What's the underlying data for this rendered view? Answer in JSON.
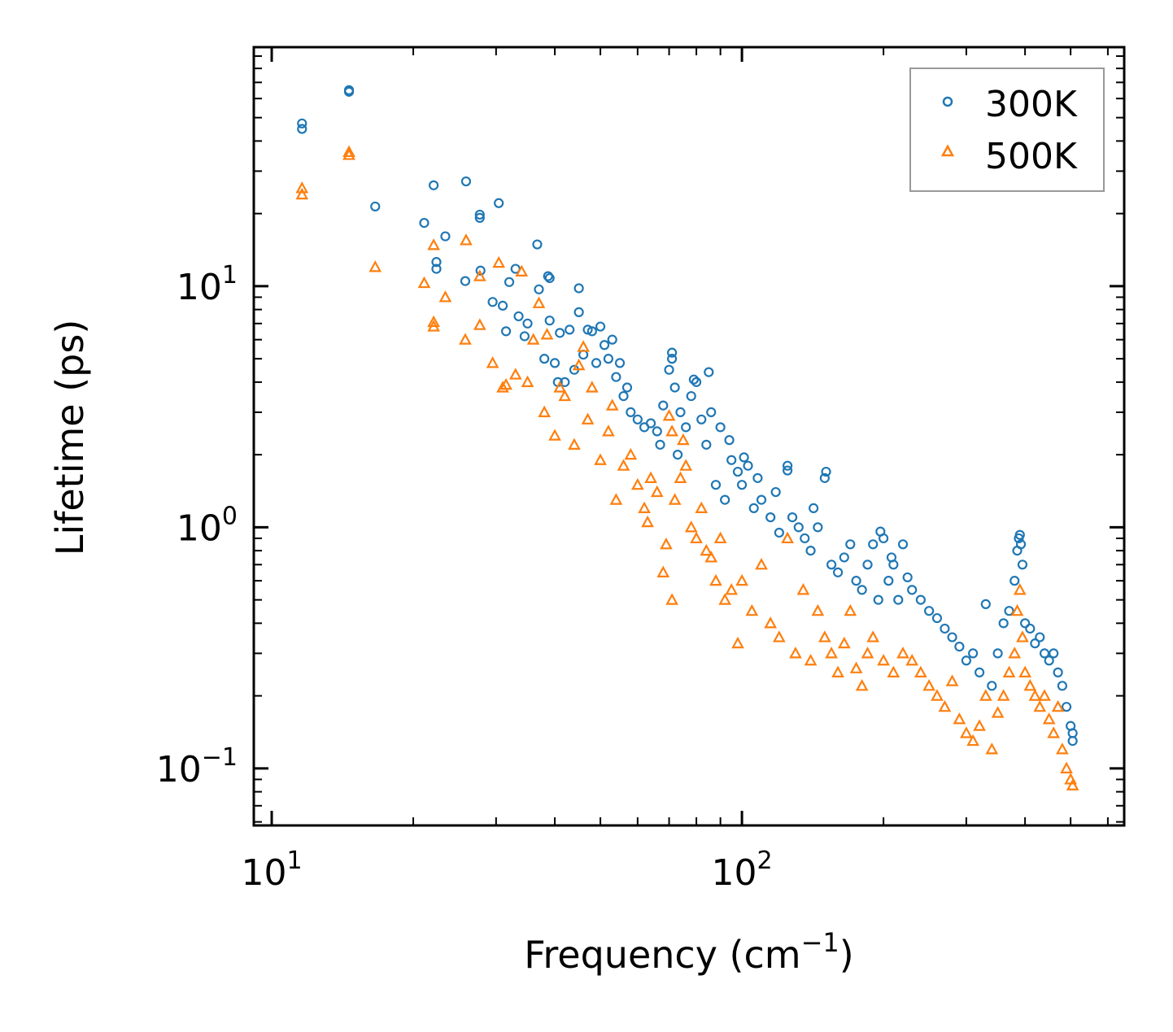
{
  "chart_data": {
    "type": "scatter",
    "title": "",
    "xlabel": "Frequency (cm",
    "xlabel_sup": "−1",
    "xlabel_end": ")",
    "ylabel": "Lifetime (ps)",
    "xscale": "log",
    "yscale": "log",
    "xlim": [
      9.16,
      650
    ],
    "ylim": [
      0.058,
      98
    ],
    "x_ticks": [
      {
        "value": 10,
        "base": "10",
        "exp": "1"
      },
      {
        "value": 100,
        "base": "10",
        "exp": "2"
      }
    ],
    "y_ticks": [
      {
        "value": 0.1,
        "base": "10",
        "exp": "−1"
      },
      {
        "value": 1,
        "base": "10",
        "exp": "0"
      },
      {
        "value": 10,
        "base": "10",
        "exp": "1"
      }
    ],
    "legend_position": "top-right",
    "grid": false,
    "series": [
      {
        "name": "300K",
        "marker": "circle",
        "color": "#1f77b4",
        "points": [
          [
            11.6,
            47.3
          ],
          [
            11.6,
            44.9
          ],
          [
            14.6,
            65
          ],
          [
            14.6,
            64
          ],
          [
            16.6,
            21.4
          ],
          [
            21.1,
            18.3
          ],
          [
            22.1,
            26.2
          ],
          [
            22.4,
            12.6
          ],
          [
            22.4,
            11.8
          ],
          [
            23.4,
            16.1
          ],
          [
            25.9,
            27.2
          ],
          [
            25.8,
            10.5
          ],
          [
            27.7,
            19.8
          ],
          [
            27.7,
            19.2
          ],
          [
            27.8,
            11.6
          ],
          [
            30.4,
            22.1
          ],
          [
            29.5,
            8.6
          ],
          [
            31,
            8.3
          ],
          [
            31.5,
            6.5
          ],
          [
            32,
            10.4
          ],
          [
            33,
            11.8
          ],
          [
            33.5,
            7.5
          ],
          [
            34.5,
            6.2
          ],
          [
            35,
            7.0
          ],
          [
            36.7,
            14.9
          ],
          [
            37,
            9.7
          ],
          [
            38,
            5.0
          ],
          [
            38.7,
            11
          ],
          [
            39,
            10.8
          ],
          [
            39,
            7.2
          ],
          [
            40,
            4.8
          ],
          [
            40.6,
            4.0
          ],
          [
            41,
            6.4
          ],
          [
            42,
            4.0
          ],
          [
            43,
            6.6
          ],
          [
            44,
            4.5
          ],
          [
            45,
            9.8
          ],
          [
            45,
            7.8
          ],
          [
            46,
            5.2
          ],
          [
            47,
            6.6
          ],
          [
            48,
            6.5
          ],
          [
            49,
            4.8
          ],
          [
            50,
            6.8
          ],
          [
            51,
            5.7
          ],
          [
            52,
            5.0
          ],
          [
            53,
            6.0
          ],
          [
            54,
            4.2
          ],
          [
            55,
            4.8
          ],
          [
            56,
            3.5
          ],
          [
            57,
            3.8
          ],
          [
            58,
            3.0
          ],
          [
            60,
            2.8
          ],
          [
            62,
            2.6
          ],
          [
            64,
            2.7
          ],
          [
            66,
            2.5
          ],
          [
            67,
            2.2
          ],
          [
            68,
            3.2
          ],
          [
            70,
            4.5
          ],
          [
            71,
            5.3
          ],
          [
            71,
            5.0
          ],
          [
            72,
            3.8
          ],
          [
            73,
            2.0
          ],
          [
            74,
            3.0
          ],
          [
            76,
            2.6
          ],
          [
            78,
            3.5
          ],
          [
            79,
            4.1
          ],
          [
            80,
            4.0
          ],
          [
            82,
            2.8
          ],
          [
            84,
            2.2
          ],
          [
            85,
            4.4
          ],
          [
            86,
            3.0
          ],
          [
            88,
            1.5
          ],
          [
            90,
            2.6
          ],
          [
            92,
            1.3
          ],
          [
            94,
            2.3
          ],
          [
            95,
            1.9
          ],
          [
            98,
            1.7
          ],
          [
            100,
            1.5
          ],
          [
            101,
            1.95
          ],
          [
            103,
            1.8
          ],
          [
            106,
            1.2
          ],
          [
            108,
            1.6
          ],
          [
            110,
            1.3
          ],
          [
            115,
            1.1
          ],
          [
            118,
            1.4
          ],
          [
            120,
            0.95
          ],
          [
            125,
            1.8
          ],
          [
            125,
            1.72
          ],
          [
            128,
            1.1
          ],
          [
            132,
            1.0
          ],
          [
            136,
            0.9
          ],
          [
            140,
            0.8
          ],
          [
            142,
            1.2
          ],
          [
            145,
            1.0
          ],
          [
            150,
            1.6
          ],
          [
            151,
            1.7
          ],
          [
            155,
            0.7
          ],
          [
            160,
            0.65
          ],
          [
            165,
            0.75
          ],
          [
            170,
            0.85
          ],
          [
            175,
            0.6
          ],
          [
            180,
            0.55
          ],
          [
            185,
            0.7
          ],
          [
            190,
            0.85
          ],
          [
            195,
            0.5
          ],
          [
            197,
            0.96
          ],
          [
            200,
            0.9
          ],
          [
            205,
            0.6
          ],
          [
            208,
            0.75
          ],
          [
            210,
            0.7
          ],
          [
            215,
            0.5
          ],
          [
            220,
            0.85
          ],
          [
            225,
            0.62
          ],
          [
            230,
            0.55
          ],
          [
            240,
            0.5
          ],
          [
            250,
            0.45
          ],
          [
            260,
            0.42
          ],
          [
            270,
            0.38
          ],
          [
            280,
            0.35
          ],
          [
            290,
            0.32
          ],
          [
            300,
            0.28
          ],
          [
            310,
            0.3
          ],
          [
            320,
            0.25
          ],
          [
            330,
            0.48
          ],
          [
            340,
            0.22
          ],
          [
            350,
            0.3
          ],
          [
            360,
            0.4
          ],
          [
            370,
            0.45
          ],
          [
            380,
            0.6
          ],
          [
            385,
            0.8
          ],
          [
            388,
            0.9
          ],
          [
            390,
            0.93
          ],
          [
            392,
            0.85
          ],
          [
            395,
            0.7
          ],
          [
            400,
            0.4
          ],
          [
            410,
            0.38
          ],
          [
            420,
            0.33
          ],
          [
            430,
            0.35
          ],
          [
            440,
            0.3
          ],
          [
            450,
            0.28
          ],
          [
            460,
            0.3
          ],
          [
            470,
            0.25
          ],
          [
            480,
            0.22
          ],
          [
            490,
            0.18
          ],
          [
            500,
            0.15
          ],
          [
            505,
            0.13
          ],
          [
            505,
            0.14
          ]
        ]
      },
      {
        "name": "500K",
        "marker": "triangle",
        "color": "#ff7f0e",
        "points": [
          [
            11.6,
            25.5
          ],
          [
            11.6,
            24
          ],
          [
            14.6,
            36
          ],
          [
            14.6,
            35
          ],
          [
            16.6,
            12
          ],
          [
            21.1,
            10.3
          ],
          [
            22.1,
            14.8
          ],
          [
            22.1,
            7.1
          ],
          [
            22.1,
            6.8
          ],
          [
            23.4,
            9
          ],
          [
            25.8,
            6
          ],
          [
            25.9,
            15.5
          ],
          [
            27.7,
            11
          ],
          [
            27.7,
            6.9
          ],
          [
            29.5,
            4.8
          ],
          [
            30.4,
            12.5
          ],
          [
            31,
            3.8
          ],
          [
            31.5,
            3.9
          ],
          [
            33,
            4.3
          ],
          [
            34,
            11.5
          ],
          [
            35,
            4.0
          ],
          [
            36,
            6.0
          ],
          [
            37,
            8.5
          ],
          [
            38,
            3.0
          ],
          [
            38.5,
            6.3
          ],
          [
            40,
            2.4
          ],
          [
            41,
            3.8
          ],
          [
            42,
            3.5
          ],
          [
            44,
            2.2
          ],
          [
            45,
            4.7
          ],
          [
            46,
            5.6
          ],
          [
            47,
            2.8
          ],
          [
            48,
            3.8
          ],
          [
            50,
            1.9
          ],
          [
            52,
            2.5
          ],
          [
            53,
            3.2
          ],
          [
            54,
            1.3
          ],
          [
            56,
            1.8
          ],
          [
            58,
            2.0
          ],
          [
            60,
            1.5
          ],
          [
            62,
            1.2
          ],
          [
            63,
            1.05
          ],
          [
            64,
            1.6
          ],
          [
            66,
            1.4
          ],
          [
            68,
            0.65
          ],
          [
            69,
            0.85
          ],
          [
            70,
            2.9
          ],
          [
            71,
            0.5
          ],
          [
            71,
            2.5
          ],
          [
            72,
            1.3
          ],
          [
            74,
            1.6
          ],
          [
            75,
            2.3
          ],
          [
            76,
            1.8
          ],
          [
            78,
            1.0
          ],
          [
            80,
            0.9
          ],
          [
            82,
            1.2
          ],
          [
            84,
            0.8
          ],
          [
            86,
            0.75
          ],
          [
            88,
            0.6
          ],
          [
            90,
            0.9
          ],
          [
            92,
            0.5
          ],
          [
            95,
            0.55
          ],
          [
            98,
            0.33
          ],
          [
            100,
            0.6
          ],
          [
            105,
            0.45
          ],
          [
            110,
            0.7
          ],
          [
            115,
            0.4
          ],
          [
            120,
            0.35
          ],
          [
            125,
            0.9
          ],
          [
            130,
            0.3
          ],
          [
            135,
            0.55
          ],
          [
            140,
            0.28
          ],
          [
            145,
            0.45
          ],
          [
            150,
            0.35
          ],
          [
            155,
            0.3
          ],
          [
            160,
            0.25
          ],
          [
            165,
            0.33
          ],
          [
            170,
            0.45
          ],
          [
            175,
            0.26
          ],
          [
            180,
            0.22
          ],
          [
            185,
            0.3
          ],
          [
            190,
            0.35
          ],
          [
            200,
            0.28
          ],
          [
            210,
            0.25
          ],
          [
            220,
            0.3
          ],
          [
            230,
            0.28
          ],
          [
            240,
            0.25
          ],
          [
            250,
            0.22
          ],
          [
            260,
            0.2
          ],
          [
            270,
            0.18
          ],
          [
            280,
            0.23
          ],
          [
            290,
            0.16
          ],
          [
            300,
            0.14
          ],
          [
            310,
            0.13
          ],
          [
            320,
            0.15
          ],
          [
            330,
            0.2
          ],
          [
            340,
            0.12
          ],
          [
            350,
            0.17
          ],
          [
            360,
            0.2
          ],
          [
            370,
            0.25
          ],
          [
            380,
            0.3
          ],
          [
            385,
            0.45
          ],
          [
            390,
            0.55
          ],
          [
            395,
            0.35
          ],
          [
            400,
            0.25
          ],
          [
            410,
            0.22
          ],
          [
            420,
            0.2
          ],
          [
            430,
            0.18
          ],
          [
            440,
            0.2
          ],
          [
            450,
            0.16
          ],
          [
            460,
            0.14
          ],
          [
            470,
            0.18
          ],
          [
            480,
            0.12
          ],
          [
            490,
            0.1
          ],
          [
            500,
            0.09
          ],
          [
            505,
            0.085
          ]
        ]
      }
    ]
  }
}
